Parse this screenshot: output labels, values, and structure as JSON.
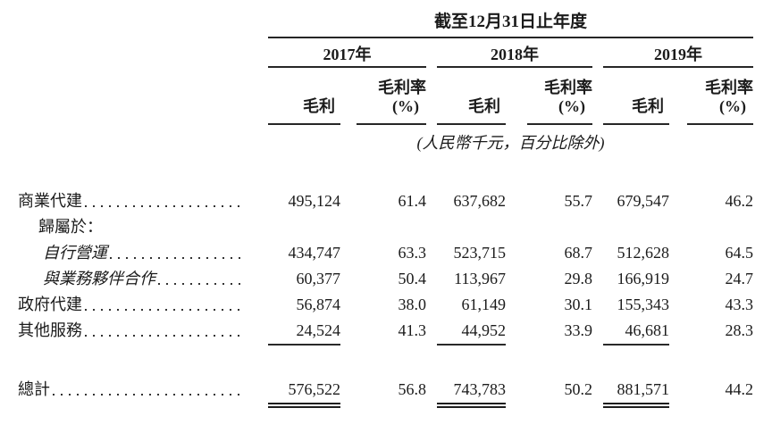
{
  "table": {
    "title": "截至12月31日止年度",
    "unit_note": "(人民幣千元，百分比除外)",
    "year_groups": [
      {
        "label": "2017年"
      },
      {
        "label": "2018年"
      },
      {
        "label": "2019年"
      }
    ],
    "sub_headers": {
      "gross_profit": "毛利",
      "margin_line1": "毛利率",
      "margin_line2": "(%)"
    },
    "rows": [
      {
        "label": "商業代建",
        "values": [
          "495,124",
          "61.4",
          "637,682",
          "55.7",
          "679,547",
          "46.2"
        ]
      },
      {
        "label": "歸屬於：",
        "values": [
          "",
          "",
          "",
          "",
          "",
          ""
        ]
      },
      {
        "label": "自行營運",
        "values": [
          "434,747",
          "63.3",
          "523,715",
          "68.7",
          "512,628",
          "64.5"
        ]
      },
      {
        "label": "與業務夥伴合作",
        "values": [
          "60,377",
          "50.4",
          "113,967",
          "29.8",
          "166,919",
          "24.7"
        ]
      },
      {
        "label": "政府代建",
        "values": [
          "56,874",
          "38.0",
          "61,149",
          "30.1",
          "155,343",
          "43.3"
        ]
      },
      {
        "label": "其他服務",
        "values": [
          "24,524",
          "41.3",
          "44,952",
          "33.9",
          "46,681",
          "28.3"
        ]
      }
    ],
    "total_row": {
      "label": "總計",
      "values": [
        "576,522",
        "56.8",
        "743,783",
        "50.2",
        "881,571",
        "44.2"
      ]
    }
  }
}
